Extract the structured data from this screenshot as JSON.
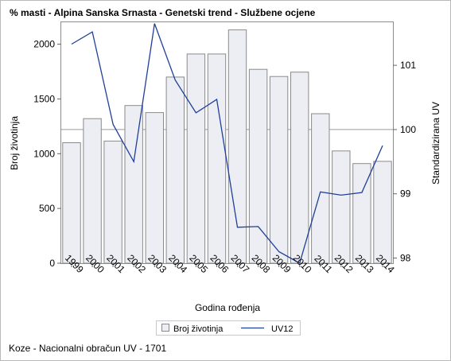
{
  "page": {
    "footnote": "Koze - Nacionalni obračun UV - 1701"
  },
  "chart_data": {
    "type": "bar",
    "title": "% masti - Alpina Sanska Srnasta - Genetski trend - Službene ocjene",
    "xlabel": "Godina rođenja",
    "ylabel": "Broj životinja",
    "y2label": "Standardizirana UV",
    "categories": [
      "1999",
      "2000",
      "2001",
      "2002",
      "2003",
      "2004",
      "2005",
      "2006",
      "2007",
      "2008",
      "2009",
      "2010",
      "2011",
      "2012",
      "2013",
      "2014"
    ],
    "ylim": [
      0,
      2200
    ],
    "yticks": [
      0,
      500,
      1000,
      1500,
      2000
    ],
    "y2lim": [
      97.92,
      101.67
    ],
    "y2ticks": [
      98,
      99,
      100,
      101
    ],
    "reference_line": 100,
    "grid": false,
    "legend_position": "bottom",
    "series": [
      {
        "name": "Broj životinja",
        "kind": "bar",
        "axis": "left",
        "color": "#eceef3",
        "values": [
          1100,
          1320,
          1115,
          1440,
          1375,
          1700,
          1910,
          1910,
          2130,
          1770,
          1705,
          1745,
          1365,
          1025,
          910,
          930
        ]
      },
      {
        "name": "UV12",
        "kind": "line",
        "axis": "right",
        "color": "#1f3f99",
        "values": [
          101.33,
          101.52,
          100.08,
          99.5,
          101.65,
          100.77,
          100.26,
          100.47,
          98.48,
          98.49,
          98.1,
          97.92,
          99.03,
          98.98,
          99.02,
          99.75
        ]
      }
    ]
  }
}
